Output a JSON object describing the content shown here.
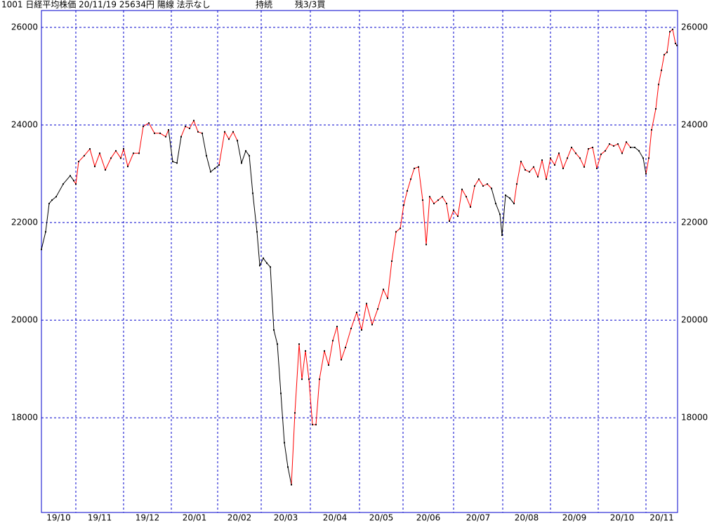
{
  "chart_data": {
    "type": "line",
    "title": "1001 日経平均株価 20/11/19 25634円 陽線 法示なし",
    "status": "持続",
    "signal": "残3/3買",
    "xlim": [
      0,
      906
    ],
    "xticks": [
      {
        "value": 0,
        "label": "19/10"
      },
      {
        "value": 49,
        "label": "19/11"
      },
      {
        "value": 117,
        "label": "19/12"
      },
      {
        "value": 185,
        "label": "20/01"
      },
      {
        "value": 251,
        "label": "20/02"
      },
      {
        "value": 313,
        "label": "20/03"
      },
      {
        "value": 383,
        "label": "20/04"
      },
      {
        "value": 453,
        "label": "20/05"
      },
      {
        "value": 515,
        "label": "20/06"
      },
      {
        "value": 587,
        "label": "20/07"
      },
      {
        "value": 657,
        "label": "20/08"
      },
      {
        "value": 725,
        "label": "20/09"
      },
      {
        "value": 793,
        "label": "20/10"
      },
      {
        "value": 861,
        "label": "20/11"
      }
    ],
    "ylim": [
      16060,
      26345
    ],
    "yticks": [
      18000,
      20000,
      22000,
      24000,
      26000
    ],
    "grid": true,
    "grid_color": "#0000cc",
    "series": [
      {
        "color": "#000000",
        "x": [
          0,
          6,
          11,
          15,
          21,
          31,
          41,
          46,
          null,
          181,
          187,
          193,
          199,
          null,
          229,
          235,
          241,
          247,
          253,
          null,
          279,
          285,
          291,
          296,
          301,
          307,
          311,
          316,
          321,
          326,
          331,
          336,
          341,
          346,
          351,
          356,
          null,
          641,
          647,
          653,
          656,
          661,
          667,
          673,
          null,
          839,
          845,
          851,
          857,
          861
        ],
        "values": [
          21450,
          21810,
          22390,
          22460,
          22530,
          22790,
          22960,
          22860,
          null,
          23900,
          23250,
          23220,
          23760,
          null,
          23830,
          23370,
          23040,
          23110,
          23180,
          null,
          23680,
          23220,
          23470,
          23370,
          22600,
          21810,
          21120,
          21270,
          21170,
          21090,
          19800,
          19510,
          18500,
          17490,
          16990,
          16630,
          null,
          22700,
          22390,
          22170,
          21740,
          22560,
          22500,
          22390,
          null,
          23540,
          23540,
          23470,
          23320,
          23000
        ]
      },
      {
        "color": "#ff0000",
        "x": [
          46,
          49,
          53,
          61,
          69,
          76,
          83,
          91,
          99,
          106,
          113,
          117,
          123,
          131,
          139,
          145,
          153,
          161,
          169,
          177,
          181,
          null,
          199,
          205,
          211,
          217,
          223,
          229,
          null,
          253,
          261,
          267,
          273,
          279,
          null,
          356,
          361,
          367,
          371,
          376,
          381,
          386,
          391,
          396,
          403,
          409,
          415,
          421,
          427,
          433,
          441,
          449,
          456,
          463,
          471,
          479,
          487,
          493,
          499,
          505,
          511,
          516,
          521,
          526,
          531,
          537,
          543,
          548,
          553,
          559,
          565,
          571,
          577,
          581,
          587,
          593,
          599,
          605,
          611,
          617,
          623,
          629,
          635,
          641,
          null,
          673,
          677,
          683,
          689,
          695,
          701,
          707,
          713,
          719,
          725,
          731,
          737,
          743,
          749,
          755,
          761,
          767,
          773,
          779,
          785,
          791,
          797,
          803,
          809,
          815,
          821,
          827,
          833,
          839,
          null,
          861,
          865,
          869,
          875,
          879,
          883,
          887,
          891,
          895,
          899,
          903,
          905
        ],
        "values": [
          22860,
          22790,
          23250,
          23370,
          23510,
          23150,
          23420,
          23080,
          23320,
          23470,
          23320,
          23510,
          23150,
          23420,
          23420,
          23970,
          24040,
          23830,
          23830,
          23760,
          23900,
          null,
          23760,
          23970,
          23930,
          24090,
          23860,
          23830,
          null,
          23180,
          23860,
          23710,
          23860,
          23680,
          null,
          16630,
          18100,
          19510,
          18790,
          19370,
          18790,
          17860,
          17860,
          18790,
          19370,
          19080,
          19580,
          19870,
          19190,
          19440,
          19830,
          20160,
          19800,
          20340,
          19910,
          20230,
          20630,
          20450,
          21210,
          21810,
          21880,
          22360,
          22650,
          22890,
          23110,
          23140,
          22460,
          21550,
          22530,
          22390,
          22460,
          22530,
          22390,
          22030,
          22250,
          22130,
          22680,
          22530,
          22320,
          22750,
          22890,
          22750,
          22790,
          22700,
          null,
          22390,
          22790,
          23250,
          23080,
          23040,
          23140,
          22940,
          23280,
          22890,
          23320,
          23180,
          23420,
          23110,
          23320,
          23540,
          23420,
          23320,
          23140,
          23510,
          23540,
          23110,
          23400,
          23470,
          23610,
          23570,
          23610,
          23420,
          23650,
          23540,
          null,
          23000,
          23320,
          23900,
          24330,
          24830,
          25120,
          25440,
          25490,
          25910,
          25960,
          25670,
          25630
        ]
      }
    ]
  }
}
